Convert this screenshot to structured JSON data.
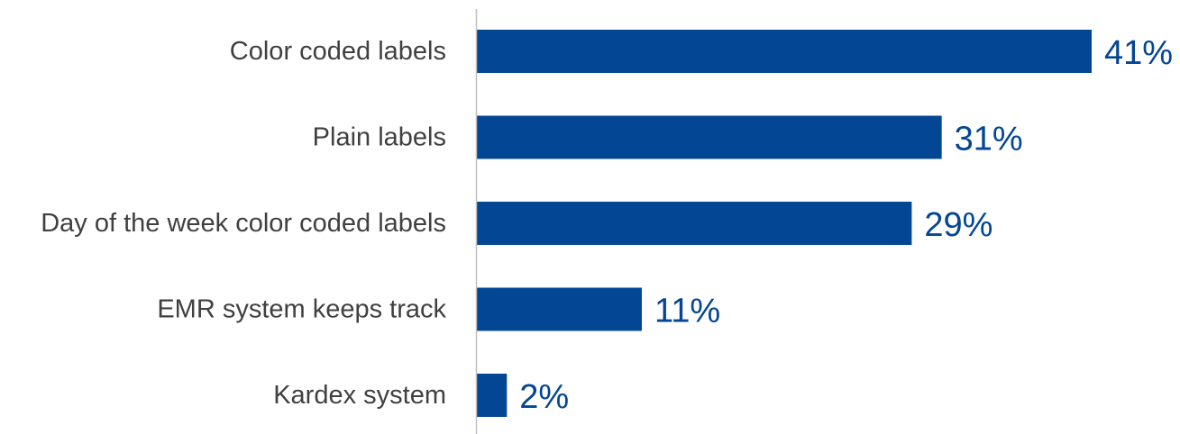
{
  "chart_data": {
    "type": "bar",
    "orientation": "horizontal",
    "categories": [
      "Color coded labels",
      "Plain labels",
      "Day of the week color coded labels",
      "EMR system keeps track",
      "Kardex system"
    ],
    "values": [
      41,
      31,
      29,
      11,
      2
    ],
    "value_labels": [
      "41%",
      "31%",
      "29%",
      "11%",
      "2%"
    ],
    "unit": "%",
    "xlim": [
      0,
      41
    ],
    "grid": false,
    "legend": "none",
    "bar_color": "#034694",
    "label_color": "#404040",
    "axis_color": "#bfbfbf"
  }
}
